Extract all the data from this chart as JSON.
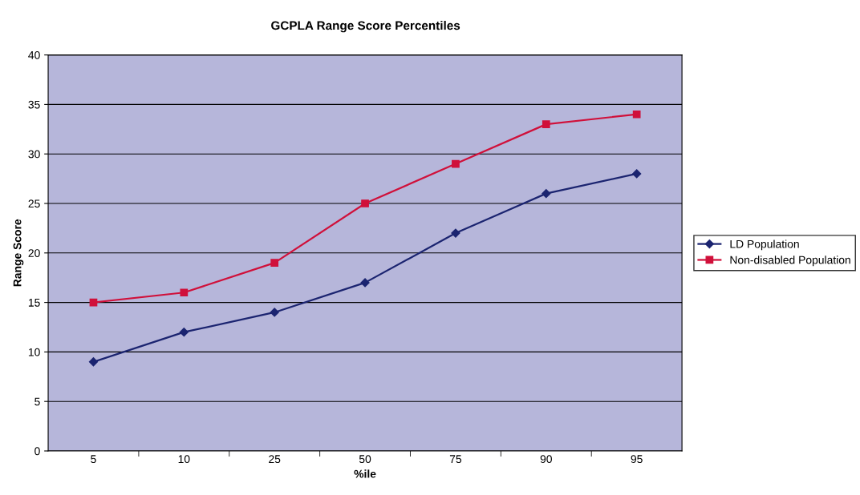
{
  "chart_data": {
    "type": "line",
    "title": "GCPLA Range Score Percentiles",
    "xlabel": "%ile",
    "ylabel": "Range Score",
    "categories": [
      "5",
      "10",
      "25",
      "50",
      "75",
      "90",
      "95"
    ],
    "series": [
      {
        "name": "LD Population",
        "color": "#1b2470",
        "marker": "diamond",
        "values": [
          9,
          12,
          14,
          17,
          22,
          26,
          28
        ]
      },
      {
        "name": "Non-disabled Population",
        "color": "#d0103a",
        "marker": "square",
        "values": [
          15,
          16,
          19,
          25,
          29,
          33,
          34
        ]
      }
    ],
    "ylim": [
      0,
      40
    ],
    "yticks": [
      0,
      5,
      10,
      15,
      20,
      25,
      30,
      35,
      40
    ],
    "grid": "y",
    "legend": "right",
    "line_style": "solid"
  }
}
